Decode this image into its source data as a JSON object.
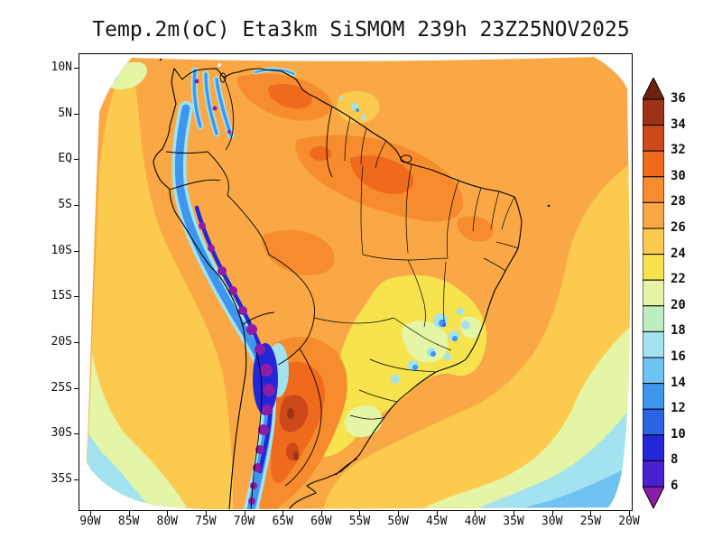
{
  "title": "Temp.2m(oC) Eta3km SiSMOM 239h 23Z25NOV2025",
  "map_info": {
    "variable": "Temp.2m",
    "unit": "oC",
    "model": "Eta3km",
    "system": "SiSMOM",
    "forecast_hour": "239h",
    "valid_time": "23Z25NOV2025",
    "region": "South America"
  },
  "axes": {
    "lat_ticks": [
      "10N",
      "5N",
      "EQ",
      "5S",
      "10S",
      "15S",
      "20S",
      "25S",
      "30S",
      "35S"
    ],
    "lon_ticks": [
      "90W",
      "85W",
      "80W",
      "75W",
      "70W",
      "65W",
      "60W",
      "55W",
      "50W",
      "45W",
      "40W",
      "35W",
      "30W",
      "25W",
      "20W"
    ]
  },
  "colorbar": {
    "labels_top_to_bottom": [
      "36",
      "34",
      "32",
      "30",
      "28",
      "26",
      "24",
      "22",
      "20",
      "18",
      "16",
      "14",
      "12",
      "10",
      "8",
      "6"
    ],
    "bands_bottom_to_top": [
      {
        "range": "<6",
        "color": "#8d1ca8"
      },
      {
        "range": "6-8",
        "color": "#4a1fd2"
      },
      {
        "range": "8-10",
        "color": "#2327d8"
      },
      {
        "range": "10-12",
        "color": "#2c63e3"
      },
      {
        "range": "12-14",
        "color": "#3f96ee"
      },
      {
        "range": "14-16",
        "color": "#6fc3f2"
      },
      {
        "range": "16-18",
        "color": "#a2e3ef"
      },
      {
        "range": "18-20",
        "color": "#bdeec1"
      },
      {
        "range": "20-22",
        "color": "#e4f6a6"
      },
      {
        "range": "22-24",
        "color": "#f6e34e"
      },
      {
        "range": "24-26",
        "color": "#fcca4f"
      },
      {
        "range": "26-28",
        "color": "#f9a845"
      },
      {
        "range": "28-30",
        "color": "#f68c2e"
      },
      {
        "range": "30-32",
        "color": "#ef6a1d"
      },
      {
        "range": "32-34",
        "color": "#cc4a1a"
      },
      {
        "range": "34-36",
        "color": "#9c3317"
      },
      {
        "range": ">36",
        "color": "#6e2212"
      }
    ]
  }
}
